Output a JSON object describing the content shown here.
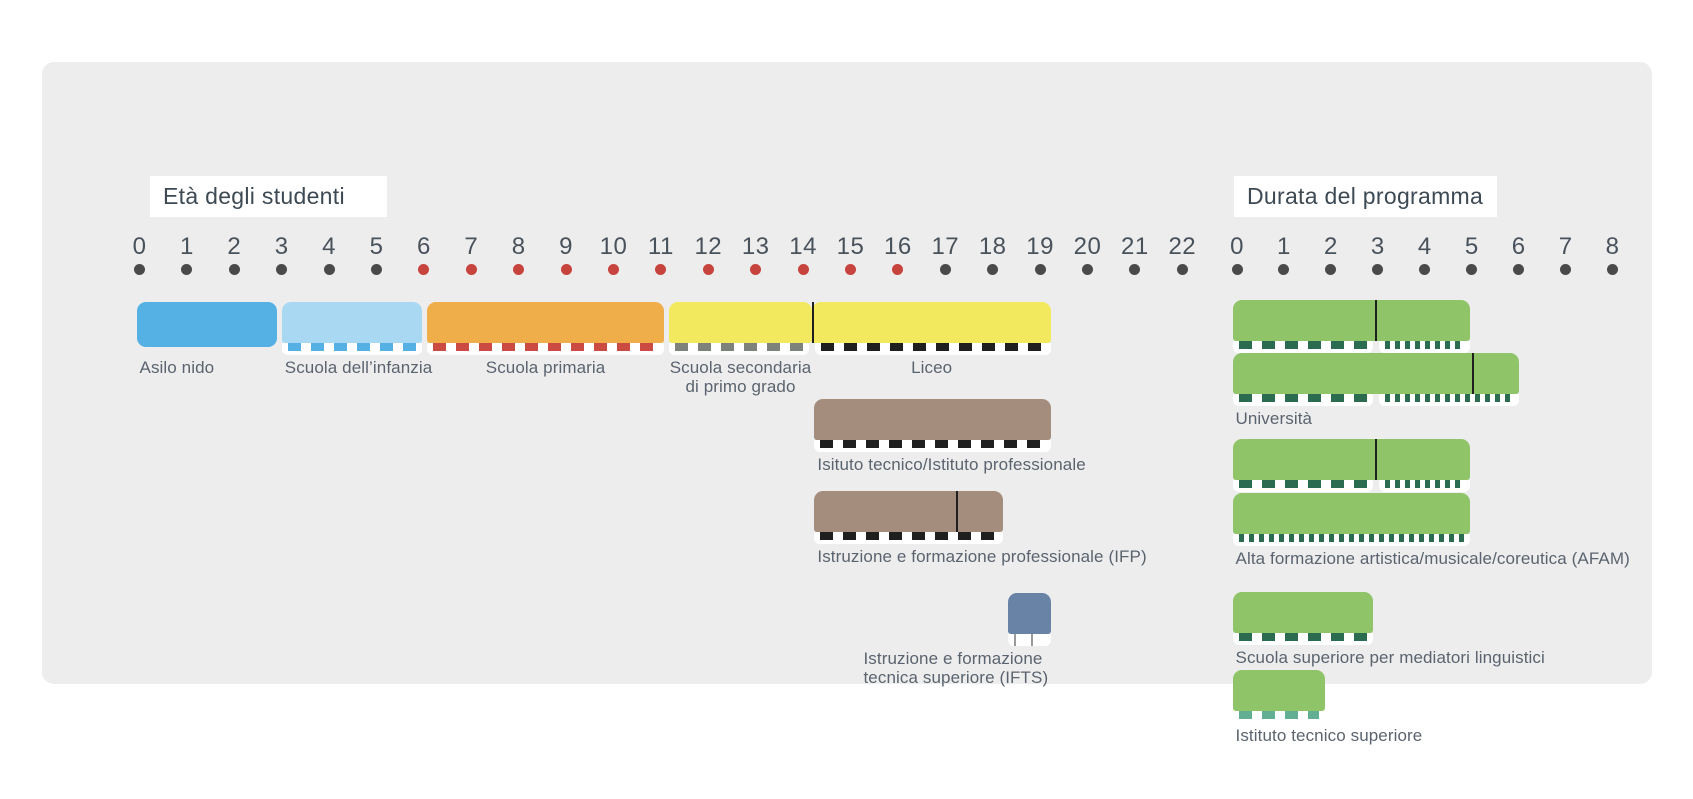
{
  "titles": {
    "left_label": "Età degli studenti",
    "right_label": "Durata del programma"
  },
  "colors": {
    "page_bg": "#ffffff",
    "panel_bg": "#ededee",
    "title_text": "#3d4953",
    "label_text": "#5b646e",
    "axis_number": "#49525a",
    "axis_dot": "#4a4a4a",
    "axis_dot_compulsory": "#c7443e",
    "divider_line": "#1f1f1f",
    "strip_bg": "#ffffff",
    "asilo_blue": "#55b1e4",
    "infanzia_light_blue": "#a9d9f2",
    "primaria_orange": "#efae49",
    "secondaria_liceo_yellow": "#f2e95e",
    "tecnico_brown": "#a58d7e",
    "ifts_slate": "#6883a6",
    "program_green": "#8fc469",
    "dash_dark_green": "#2b6b4f",
    "dash_teal": "#62af93",
    "dash_red": "#cb4a42",
    "dash_gray": "#7d837b",
    "dash_black": "#1f1f1f",
    "dash_blue": "#55b1e4"
  },
  "chart_data": {
    "type": "timeline-bars",
    "description": "Italian education system infographic: left section shows student ages per school stage, right section shows programme duration in years",
    "age_axis": {
      "min": 0,
      "max": 22,
      "compulsory_from": 6,
      "compulsory_to": 16
    },
    "duration_axis": {
      "min": 0,
      "max": 8
    },
    "sections": [
      {
        "id": "eta",
        "title": "Età degli studenti",
        "axis": "age",
        "bars": [
          {
            "id": "asilo-nido",
            "label": "Asilo nido",
            "start": 0,
            "end": 3,
            "row": 0,
            "color": "#55b1e4",
            "dash": [],
            "label_align": "left"
          },
          {
            "id": "scuola-dell-infanzia",
            "label": "Scuola dell’infanzia",
            "start": 3,
            "end": 6,
            "row": 0,
            "color": "#a9d9f2",
            "dash": [
              {
                "start": 3,
                "end": 6,
                "pattern": "wide",
                "color": "#55b1e4"
              }
            ],
            "label_align": "left"
          },
          {
            "id": "scuola-primaria",
            "label": "Scuola primaria",
            "start": 6,
            "end": 11,
            "row": 0,
            "color": "#efae49",
            "dash": [
              {
                "start": 6,
                "end": 11,
                "pattern": "wide",
                "color": "#cb4a42"
              }
            ],
            "label_align": "center"
          },
          {
            "id": "scuola-secondaria-primo-grado",
            "label": "Scuola secondaria\ndi primo grado",
            "start": 11,
            "end": 14,
            "row": 0,
            "color": "#f2e95e",
            "touch_right": true,
            "dash": [
              {
                "start": 11,
                "end": 14,
                "pattern": "wide",
                "color": "#7d837b"
              }
            ],
            "label_align": "center"
          },
          {
            "id": "liceo",
            "label": "Liceo",
            "start": 14,
            "end": 19,
            "row": 0,
            "color": "#f2e95e",
            "touch_left": true,
            "dividers": [
              14
            ],
            "dash": [
              {
                "start": 14,
                "end": 19,
                "pattern": "wide",
                "color": "#1f1f1f"
              }
            ],
            "label_align": "center"
          },
          {
            "id": "istituto-tecnico-professionale",
            "label": "Isituto tecnico/Istituto professionale",
            "start": 14,
            "end": 19,
            "row": 1,
            "color": "#a58d7e",
            "dash": [
              {
                "start": 14,
                "end": 19,
                "pattern": "wide",
                "color": "#1f1f1f"
              }
            ],
            "label_align": "left"
          },
          {
            "id": "ifp",
            "label": "Istruzione e formazione professionale (IFP)",
            "start": 14,
            "end": 18,
            "row": 2,
            "color": "#a58d7e",
            "dividers": [
              17
            ],
            "dash": [
              {
                "start": 14,
                "end": 18,
                "pattern": "wide",
                "color": "#1f1f1f"
              }
            ],
            "label_align": "left"
          },
          {
            "id": "ifts",
            "label": "Istruzione e formazione\ntecnica superiore (IFTS)",
            "start": 18,
            "end": 19,
            "row": 3,
            "color": "#6883a6",
            "dash": [
              {
                "start": 18,
                "end": 19,
                "pattern": "ticks",
                "color": "#9a9a9a"
              }
            ],
            "label_align": "right_block"
          }
        ]
      },
      {
        "id": "durata",
        "title": "Durata del programma",
        "axis": "duration",
        "bars": [
          {
            "id": "universita-laurea",
            "label": null,
            "start": 0,
            "end": 5,
            "row": 0,
            "color": "#8fc469",
            "dividers": [
              3
            ],
            "dash": [
              {
                "start": 0,
                "end": 3,
                "pattern": "wide",
                "color": "#2b6b4f"
              },
              {
                "start": 3,
                "end": 5,
                "pattern": "narrow",
                "color": "#2b6b4f"
              }
            ]
          },
          {
            "id": "universita-ciclo-unico",
            "label": "Università",
            "start": 0,
            "end": 6,
            "row": 1,
            "color": "#8fc469",
            "dividers": [
              5
            ],
            "dash": [
              {
                "start": 0,
                "end": 3,
                "pattern": "wide",
                "color": "#2b6b4f"
              },
              {
                "start": 3,
                "end": 6,
                "pattern": "narrow",
                "color": "#2b6b4f"
              }
            ],
            "label_align": "left"
          },
          {
            "id": "afam-laurea",
            "label": null,
            "start": 0,
            "end": 5,
            "row": 2,
            "color": "#8fc469",
            "dividers": [
              3
            ],
            "dash": [
              {
                "start": 0,
                "end": 3,
                "pattern": "wide",
                "color": "#2b6b4f"
              },
              {
                "start": 3,
                "end": 5,
                "pattern": "narrow",
                "color": "#2b6b4f"
              }
            ]
          },
          {
            "id": "afam-ciclo-unico",
            "label": "Alta formazione artistica/musicale/coreutica (AFAM)",
            "start": 0,
            "end": 5,
            "row": 3,
            "color": "#8fc469",
            "dash": [
              {
                "start": 0,
                "end": 5,
                "pattern": "narrow",
                "color": "#2b6b4f"
              }
            ],
            "label_align": "left"
          },
          {
            "id": "mediatori-linguistici",
            "label": "Scuola superiore per mediatori linguistici",
            "start": 0,
            "end": 3,
            "row": 4,
            "color": "#8fc469",
            "dash": [
              {
                "start": 0,
                "end": 3,
                "pattern": "wide",
                "color": "#2b6b4f"
              }
            ],
            "label_align": "left"
          },
          {
            "id": "istituto-tecnico-superiore",
            "label": "Istituto tecnico superiore",
            "start": 0,
            "end": 2,
            "row": 5,
            "color": "#8fc469",
            "dash": [
              {
                "start": 0,
                "end": 2,
                "pattern": "wide",
                "color": "#62af93"
              }
            ],
            "label_align": "left"
          }
        ]
      }
    ]
  }
}
